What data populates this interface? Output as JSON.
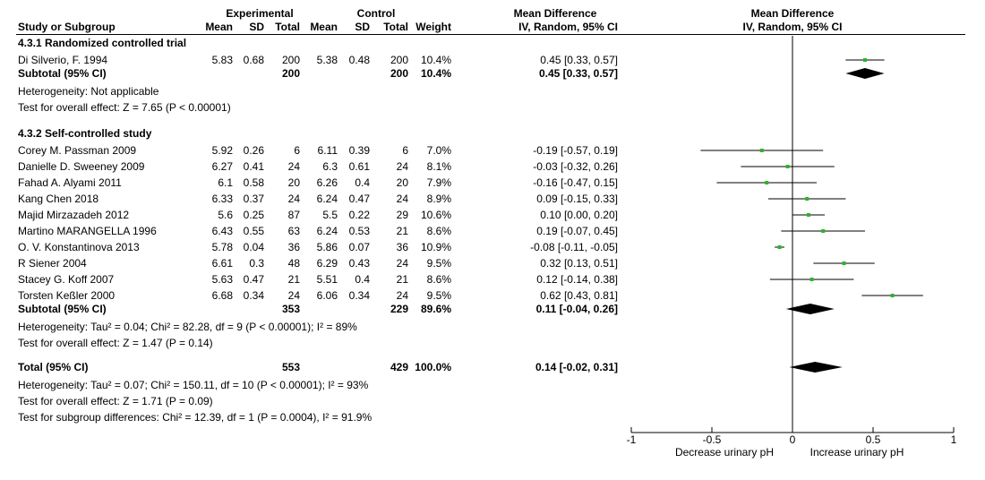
{
  "header": {
    "group_exp": "Experimental",
    "group_ctl": "Control",
    "group_md": "Mean Difference",
    "group_plot": "Mean Difference",
    "study": "Study or Subgroup",
    "mean": "Mean",
    "sd": "SD",
    "total": "Total",
    "weight": "Weight",
    "method": "IV, Random, 95% CI",
    "plot_method": "IV, Random, 95% CI"
  },
  "subgroups": [
    {
      "title": "4.3.1 Randomized controlled trial",
      "studies": [
        {
          "name": "Di Silverio, F. 1994",
          "em": "5.83",
          "esd": "0.68",
          "et": "200",
          "cm": "5.38",
          "csd": "0.48",
          "ct": "200",
          "w": "10.4%",
          "ci": "0.45 [0.33, 0.57]",
          "md": 0.45,
          "lo": 0.33,
          "hi": 0.57
        }
      ],
      "subtotal": {
        "label": "Subtotal (95% CI)",
        "et": "200",
        "ct": "200",
        "w": "10.4%",
        "ci": "0.45 [0.33, 0.57]",
        "md": 0.45,
        "lo": 0.33,
        "hi": 0.57
      },
      "het": "Heterogeneity: Not applicable",
      "test": "Test for overall effect: Z = 7.65 (P < 0.00001)"
    },
    {
      "title": "4.3.2 Self-controlled study",
      "studies": [
        {
          "name": "Corey M. Passman  2009",
          "em": "5.92",
          "esd": "0.26",
          "et": "6",
          "cm": "6.11",
          "csd": "0.39",
          "ct": "6",
          "w": "7.0%",
          "ci": "-0.19 [-0.57, 0.19]",
          "md": -0.19,
          "lo": -0.57,
          "hi": 0.19
        },
        {
          "name": "Danielle D. Sweeney  2009",
          "em": "6.27",
          "esd": "0.41",
          "et": "24",
          "cm": "6.3",
          "csd": "0.61",
          "ct": "24",
          "w": "8.1%",
          "ci": "-0.03 [-0.32, 0.26]",
          "md": -0.03,
          "lo": -0.32,
          "hi": 0.26
        },
        {
          "name": "Fahad A. Alyami  2011",
          "em": "6.1",
          "esd": "0.58",
          "et": "20",
          "cm": "6.26",
          "csd": "0.4",
          "ct": "20",
          "w": "7.9%",
          "ci": "-0.16 [-0.47, 0.15]",
          "md": -0.16,
          "lo": -0.47,
          "hi": 0.15
        },
        {
          "name": "Kang Chen  2018",
          "em": "6.33",
          "esd": "0.37",
          "et": "24",
          "cm": "6.24",
          "csd": "0.47",
          "ct": "24",
          "w": "8.9%",
          "ci": "0.09 [-0.15, 0.33]",
          "md": 0.09,
          "lo": -0.15,
          "hi": 0.33
        },
        {
          "name": "Majid Mirzazadeh 2012",
          "em": "5.6",
          "esd": "0.25",
          "et": "87",
          "cm": "5.5",
          "csd": "0.22",
          "ct": "29",
          "w": "10.6%",
          "ci": "0.10 [0.00, 0.20]",
          "md": 0.1,
          "lo": 0.0,
          "hi": 0.2
        },
        {
          "name": "Martino MARANGELLA  1996",
          "em": "6.43",
          "esd": "0.55",
          "et": "63",
          "cm": "6.24",
          "csd": "0.53",
          "ct": "21",
          "w": "8.6%",
          "ci": "0.19 [-0.07, 0.45]",
          "md": 0.19,
          "lo": -0.07,
          "hi": 0.45
        },
        {
          "name": "O. V. Konstantinova  2013",
          "em": "5.78",
          "esd": "0.04",
          "et": "36",
          "cm": "5.86",
          "csd": "0.07",
          "ct": "36",
          "w": "10.9%",
          "ci": "-0.08 [-0.11, -0.05]",
          "md": -0.08,
          "lo": -0.11,
          "hi": -0.05
        },
        {
          "name": "R Siener  2004",
          "em": "6.61",
          "esd": "0.3",
          "et": "48",
          "cm": "6.29",
          "csd": "0.43",
          "ct": "24",
          "w": "9.5%",
          "ci": "0.32 [0.13, 0.51]",
          "md": 0.32,
          "lo": 0.13,
          "hi": 0.51
        },
        {
          "name": "Stacey G. Koff  2007",
          "em": "5.63",
          "esd": "0.47",
          "et": "21",
          "cm": "5.51",
          "csd": "0.4",
          "ct": "21",
          "w": "8.6%",
          "ci": "0.12 [-0.14, 0.38]",
          "md": 0.12,
          "lo": -0.14,
          "hi": 0.38
        },
        {
          "name": "Torsten Keßler  2000",
          "em": "6.68",
          "esd": "0.34",
          "et": "24",
          "cm": "6.06",
          "csd": "0.34",
          "ct": "24",
          "w": "9.5%",
          "ci": "0.62 [0.43, 0.81]",
          "md": 0.62,
          "lo": 0.43,
          "hi": 0.81
        }
      ],
      "subtotal": {
        "label": "Subtotal (95% CI)",
        "et": "353",
        "ct": "229",
        "w": "89.6%",
        "ci": "0.11 [-0.04, 0.26]",
        "md": 0.11,
        "lo": -0.04,
        "hi": 0.26
      },
      "het": "Heterogeneity: Tau² = 0.04; Chi² = 82.28, df = 9 (P < 0.00001); I² = 89%",
      "test": "Test for overall effect: Z = 1.47 (P = 0.14)"
    }
  ],
  "total": {
    "label": "Total (95% CI)",
    "et": "553",
    "ct": "429",
    "w": "100.0%",
    "ci": "0.14 [-0.02, 0.31]",
    "md": 0.14,
    "lo": -0.02,
    "hi": 0.31,
    "het": "Heterogeneity: Tau² = 0.07; Chi² = 150.11, df = 10 (P < 0.00001); I² = 93%",
    "test": "Test for overall effect: Z = 1.71 (P = 0.09)",
    "subgroup_test": "Test for subgroup differences: Chi² = 12.39, df = 1 (P = 0.0004), I² = 91.9%"
  },
  "axis": {
    "ticks": [
      "-1",
      "-0.5",
      "0",
      "0.5",
      "1"
    ],
    "left_label": "Decrease urinary pH",
    "right_label": "Increase urinary pH"
  },
  "chart_data": {
    "type": "forest",
    "xlim": [
      -1,
      1
    ],
    "xticks": [
      -1,
      -0.5,
      0,
      0.5,
      1
    ],
    "marker_color": "#2bb52b",
    "diamond_color": "#000000"
  }
}
